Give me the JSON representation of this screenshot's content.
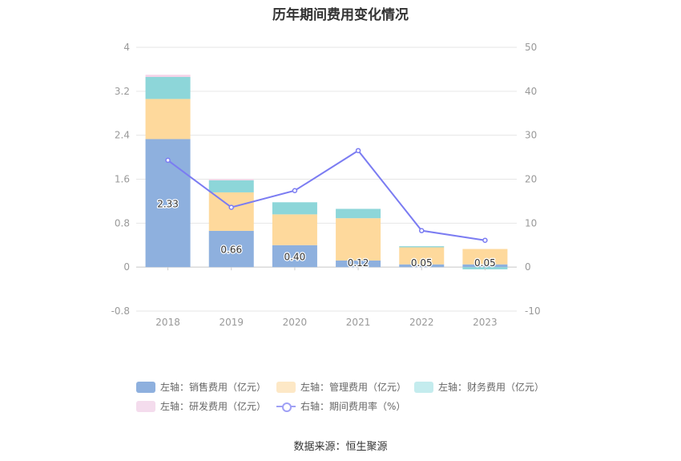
{
  "chart_data": {
    "type": "bar",
    "title": "历年期间费用变化情况",
    "categories": [
      "2018",
      "2019",
      "2020",
      "2021",
      "2022",
      "2023"
    ],
    "y_left": {
      "min": -0.8,
      "max": 4,
      "ticks": [
        "4",
        "3.2",
        "2.4",
        "1.6",
        "0.8",
        "0",
        "-0.8"
      ]
    },
    "y_right": {
      "min": -10,
      "max": 50,
      "ticks": [
        "50",
        "40",
        "30",
        "20",
        "10",
        "0",
        "-10"
      ]
    },
    "series": [
      {
        "name": "左轴：销售费用（亿元）",
        "axis": "left",
        "stack": true,
        "color": "#8eb0de",
        "values": [
          2.33,
          0.66,
          0.4,
          0.12,
          0.05,
          0.05
        ],
        "labels": [
          "2.33",
          "0.66",
          "0.40",
          "0.12",
          "0.05",
          "0.05"
        ]
      },
      {
        "name": "左轴：管理费用（亿元）",
        "axis": "left",
        "stack": true,
        "color": "#fed99c",
        "values": [
          0.73,
          0.7,
          0.56,
          0.77,
          0.31,
          0.28
        ]
      },
      {
        "name": "左轴：财务费用（亿元）",
        "axis": "left",
        "stack": true,
        "color": "#8dd6d9",
        "values": [
          0.4,
          0.22,
          0.22,
          0.17,
          0.02,
          -0.04
        ]
      },
      {
        "name": "左轴：研发费用（亿元）",
        "axis": "left",
        "stack": true,
        "color": "#f4d3e8",
        "values": [
          0.04,
          0.02,
          0.0,
          0.0,
          0.0,
          0.0
        ]
      },
      {
        "name": "右轴：期间费用率（%）",
        "axis": "right",
        "type": "line",
        "color": "#7b7cf2",
        "values": [
          24.3,
          13.6,
          17.4,
          26.5,
          8.3,
          6.1
        ]
      }
    ],
    "grid": true,
    "legend_position": "bottom"
  },
  "source": "数据来源：恒生聚源"
}
